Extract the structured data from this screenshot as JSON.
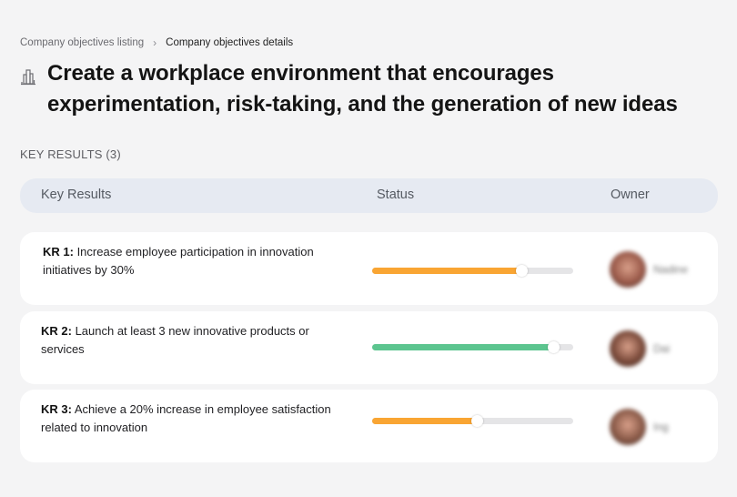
{
  "breadcrumb": {
    "parent": "Company objectives listing",
    "separator": "›",
    "current": "Company objectives details"
  },
  "objective": {
    "icon": "building-icon",
    "title": "Create a workplace environment that encourages experimentation, risk-taking, and the generation of new ideas"
  },
  "key_results_section": {
    "label": "KEY RESULTS (3)",
    "count": 3
  },
  "table": {
    "headers": {
      "key_results": "Key Results",
      "status": "Status",
      "owner": "Owner"
    },
    "rows": [
      {
        "kr_label": "KR 1:",
        "kr_text": " Increase employee participation in innovation initiatives by 30%",
        "progress_pct": 74,
        "progress_color": "#f9a533",
        "owner_name": "Nadine",
        "owner_blurred": true,
        "avatar_color": "#9b5a4a"
      },
      {
        "kr_label": "KR 2:",
        "kr_text": " Launch at least 3 new innovative products or services",
        "progress_pct": 90,
        "progress_color": "#5cc58f",
        "owner_name": "Dai",
        "owner_blurred": true,
        "avatar_color": "#7a4a3a"
      },
      {
        "kr_label": "KR 3:",
        "kr_text": " Achieve a 20% increase in employee satisfaction related to innovation",
        "progress_pct": 52,
        "progress_color": "#f9a533",
        "owner_name": "Ing",
        "owner_blurred": true,
        "avatar_color": "#8a5a48"
      }
    ]
  },
  "colors": {
    "background": "#f4f4f5",
    "header_bg": "#e6eaf2",
    "card_bg": "#ffffff",
    "progress_track": "#e5e5e7",
    "progress_orange": "#f9a533",
    "progress_green": "#5cc58f"
  }
}
